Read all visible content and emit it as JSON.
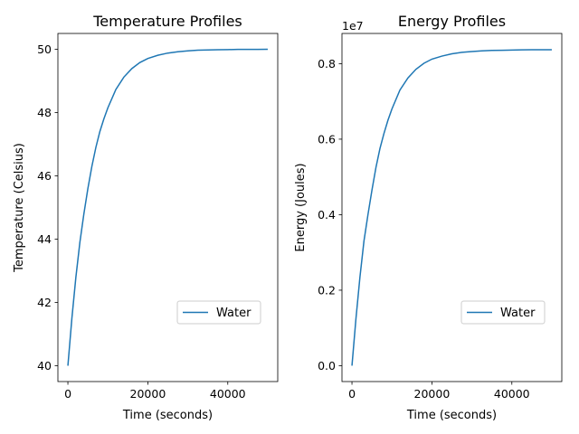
{
  "chart_data": [
    {
      "type": "line",
      "title": "Temperature Profiles",
      "xlabel": "Time (seconds)",
      "ylabel": "Temperature (Celsius)",
      "xlim": [
        -2500,
        52500
      ],
      "ylim": [
        39.5,
        50.5
      ],
      "xticks": [
        0,
        20000,
        40000
      ],
      "xtick_labels": [
        "0",
        "20000",
        "40000"
      ],
      "yticks": [
        40,
        42,
        44,
        46,
        48,
        50
      ],
      "ytick_labels": [
        "40",
        "42",
        "44",
        "46",
        "48",
        "50"
      ],
      "offset_text": "",
      "legend": {
        "placement": "lower-right"
      },
      "grid": false,
      "series": [
        {
          "name": "Water",
          "color": "#1f77b4",
          "x": [
            0,
            1000,
            2000,
            3000,
            4000,
            5000,
            6000,
            7000,
            8000,
            9000,
            10000,
            12000,
            14000,
            16000,
            18000,
            20000,
            22500,
            25000,
            27500,
            30000,
            32500,
            35000,
            37500,
            40000,
            42500,
            45000,
            47500,
            50000
          ],
          "y": [
            40.0,
            41.5,
            42.8,
            43.9,
            44.8,
            45.6,
            46.3,
            46.9,
            47.4,
            47.8,
            48.15,
            48.73,
            49.12,
            49.39,
            49.58,
            49.71,
            49.81,
            49.88,
            49.92,
            49.95,
            49.97,
            49.98,
            49.985,
            49.99,
            49.995,
            49.997,
            49.998,
            50.0
          ]
        }
      ]
    },
    {
      "type": "line",
      "title": "Energy Profiles",
      "xlabel": "Time (seconds)",
      "ylabel": "Energy (Joules)",
      "xlim": [
        -2500,
        52500
      ],
      "ylim": [
        -0.42,
        8.8
      ],
      "xticks": [
        0,
        20000,
        40000
      ],
      "xtick_labels": [
        "0",
        "20000",
        "40000"
      ],
      "yticks": [
        0,
        2,
        4,
        6,
        8
      ],
      "ytick_labels": [
        "0.0",
        "0.2",
        "0.4",
        "0.6",
        "0.8"
      ],
      "offset_text": "1e7",
      "legend": {
        "placement": "lower-right"
      },
      "grid": false,
      "series": [
        {
          "name": "Water",
          "color": "#1f77b4",
          "x": [
            0,
            1000,
            2000,
            3000,
            4000,
            5000,
            6000,
            7000,
            8000,
            9000,
            10000,
            12000,
            14000,
            16000,
            18000,
            20000,
            22500,
            25000,
            27500,
            30000,
            32500,
            35000,
            37500,
            40000,
            42500,
            45000,
            47500,
            50000
          ],
          "y": [
            0.0,
            1.25,
            2.35,
            3.3,
            4.0,
            4.65,
            5.25,
            5.75,
            6.15,
            6.5,
            6.8,
            7.3,
            7.62,
            7.85,
            8.01,
            8.12,
            8.2,
            8.26,
            8.3,
            8.32,
            8.34,
            8.35,
            8.355,
            8.36,
            8.365,
            8.368,
            8.37,
            8.37
          ]
        }
      ]
    }
  ]
}
